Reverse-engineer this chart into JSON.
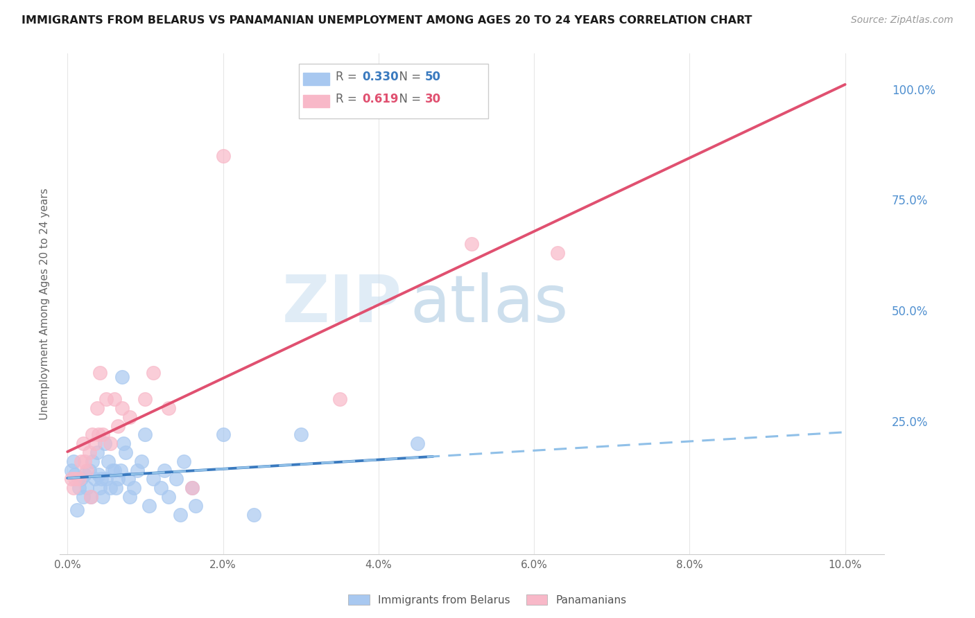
{
  "title": "IMMIGRANTS FROM BELARUS VS PANAMANIAN UNEMPLOYMENT AMONG AGES 20 TO 24 YEARS CORRELATION CHART",
  "source": "Source: ZipAtlas.com",
  "ylabel": "Unemployment Among Ages 20 to 24 years",
  "x_tick_labels": [
    "0.0%",
    "2.0%",
    "4.0%",
    "6.0%",
    "8.0%",
    "10.0%"
  ],
  "x_ticks": [
    0.0,
    2.0,
    4.0,
    6.0,
    8.0,
    10.0
  ],
  "y_tick_labels_right": [
    "25.0%",
    "50.0%",
    "75.0%",
    "100.0%"
  ],
  "y_ticks_right": [
    0.25,
    0.5,
    0.75,
    1.0
  ],
  "xlim": [
    -0.1,
    10.5
  ],
  "ylim": [
    -0.05,
    1.08
  ],
  "blue_color": "#a8c8f0",
  "pink_color": "#f8b8c8",
  "trend_blue_solid": "#3a7abf",
  "trend_pink_solid": "#e05070",
  "trend_blue_dashed": "#90c0e8",
  "legend_R1": "0.330",
  "legend_N1": "50",
  "legend_R2": "0.619",
  "legend_N2": "30",
  "legend_label1": "Immigrants from Belarus",
  "legend_label2": "Panamanians",
  "watermark_zip": "ZIP",
  "watermark_atlas": "atlas",
  "background_color": "#ffffff",
  "grid_color": "#d8d8d8",
  "blue_scatter": [
    [
      0.05,
      0.14
    ],
    [
      0.08,
      0.16
    ],
    [
      0.1,
      0.13
    ],
    [
      0.12,
      0.05
    ],
    [
      0.15,
      0.1
    ],
    [
      0.18,
      0.12
    ],
    [
      0.2,
      0.08
    ],
    [
      0.22,
      0.13
    ],
    [
      0.25,
      0.1
    ],
    [
      0.28,
      0.14
    ],
    [
      0.3,
      0.08
    ],
    [
      0.32,
      0.16
    ],
    [
      0.35,
      0.12
    ],
    [
      0.38,
      0.18
    ],
    [
      0.4,
      0.13
    ],
    [
      0.42,
      0.1
    ],
    [
      0.43,
      0.12
    ],
    [
      0.45,
      0.08
    ],
    [
      0.48,
      0.2
    ],
    [
      0.5,
      0.12
    ],
    [
      0.52,
      0.16
    ],
    [
      0.55,
      0.1
    ],
    [
      0.58,
      0.14
    ],
    [
      0.6,
      0.14
    ],
    [
      0.62,
      0.1
    ],
    [
      0.65,
      0.12
    ],
    [
      0.68,
      0.14
    ],
    [
      0.7,
      0.35
    ],
    [
      0.72,
      0.2
    ],
    [
      0.75,
      0.18
    ],
    [
      0.78,
      0.12
    ],
    [
      0.8,
      0.08
    ],
    [
      0.85,
      0.1
    ],
    [
      0.9,
      0.14
    ],
    [
      0.95,
      0.16
    ],
    [
      1.0,
      0.22
    ],
    [
      1.05,
      0.06
    ],
    [
      1.1,
      0.12
    ],
    [
      1.2,
      0.1
    ],
    [
      1.25,
      0.14
    ],
    [
      1.3,
      0.08
    ],
    [
      1.4,
      0.12
    ],
    [
      1.45,
      0.04
    ],
    [
      1.5,
      0.16
    ],
    [
      1.6,
      0.1
    ],
    [
      1.65,
      0.06
    ],
    [
      2.0,
      0.22
    ],
    [
      2.4,
      0.04
    ],
    [
      3.0,
      0.22
    ],
    [
      4.5,
      0.2
    ]
  ],
  "pink_scatter": [
    [
      0.05,
      0.12
    ],
    [
      0.08,
      0.1
    ],
    [
      0.1,
      0.12
    ],
    [
      0.15,
      0.12
    ],
    [
      0.18,
      0.16
    ],
    [
      0.2,
      0.2
    ],
    [
      0.22,
      0.16
    ],
    [
      0.25,
      0.14
    ],
    [
      0.28,
      0.18
    ],
    [
      0.3,
      0.08
    ],
    [
      0.32,
      0.22
    ],
    [
      0.35,
      0.2
    ],
    [
      0.38,
      0.28
    ],
    [
      0.4,
      0.22
    ],
    [
      0.42,
      0.36
    ],
    [
      0.45,
      0.22
    ],
    [
      0.5,
      0.3
    ],
    [
      0.55,
      0.2
    ],
    [
      0.6,
      0.3
    ],
    [
      0.65,
      0.24
    ],
    [
      0.7,
      0.28
    ],
    [
      0.8,
      0.26
    ],
    [
      1.0,
      0.3
    ],
    [
      1.1,
      0.36
    ],
    [
      1.3,
      0.28
    ],
    [
      1.6,
      0.1
    ],
    [
      2.0,
      0.85
    ],
    [
      3.5,
      0.3
    ],
    [
      5.2,
      0.65
    ],
    [
      6.3,
      0.63
    ]
  ]
}
